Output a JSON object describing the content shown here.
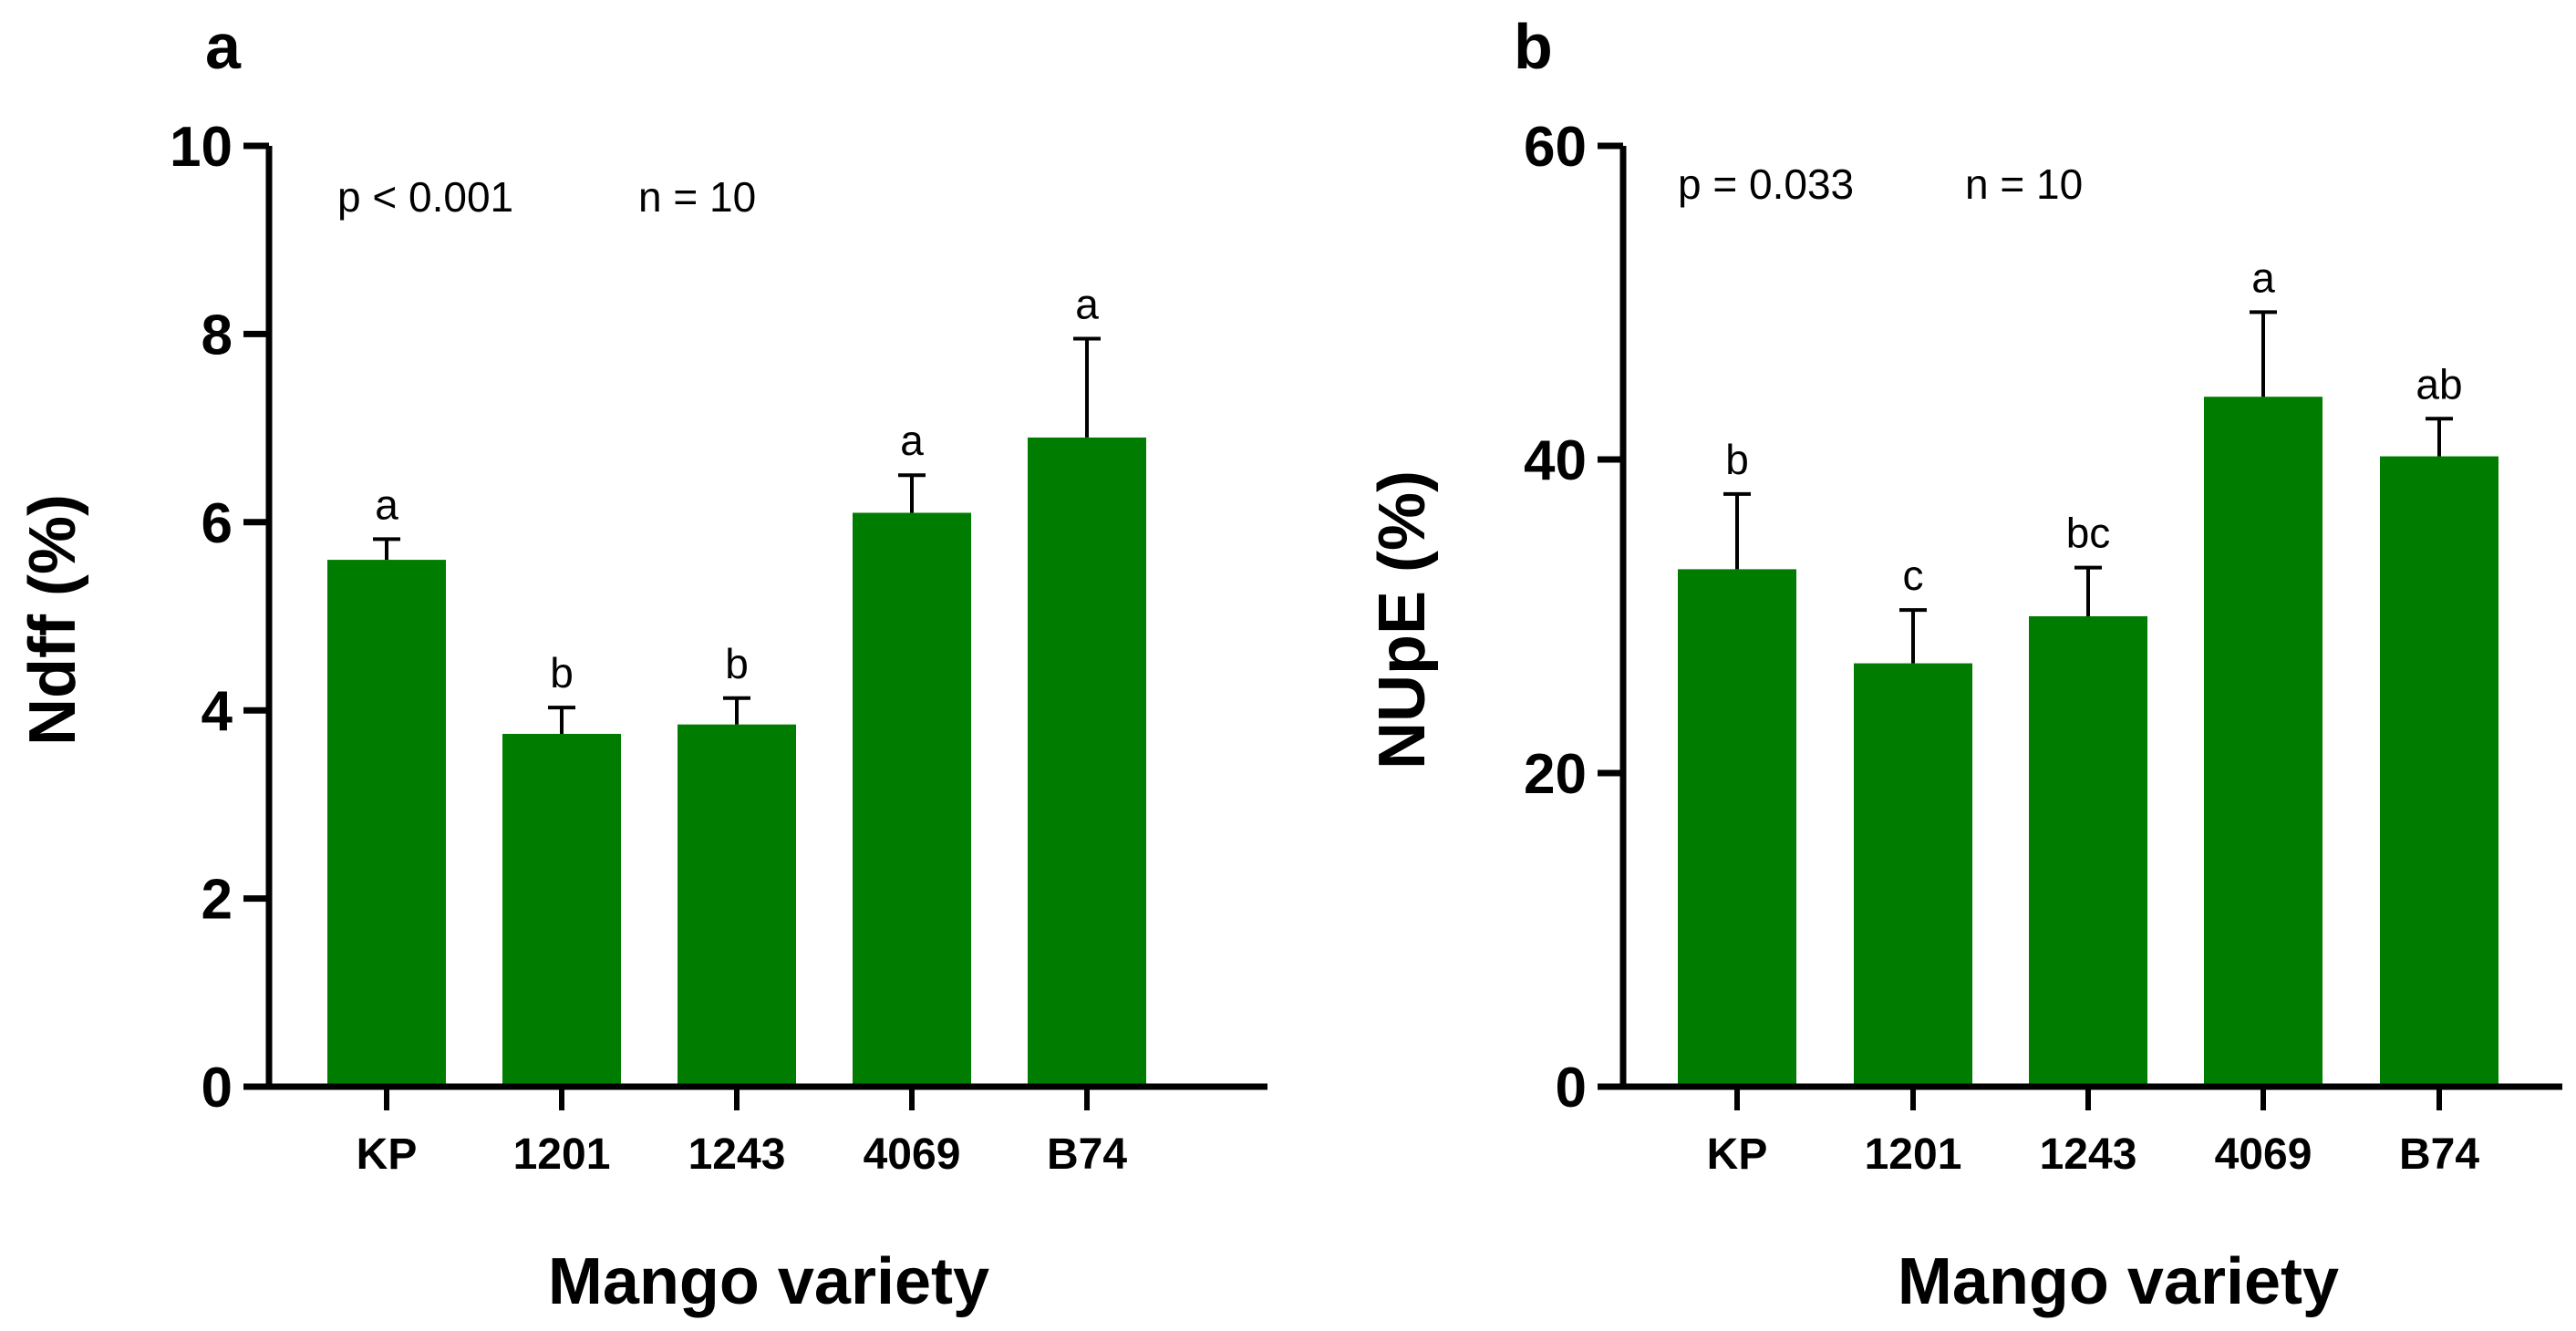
{
  "chart_data": [
    {
      "panel": "a",
      "type": "bar",
      "categories": [
        "KP",
        "1201",
        "1243",
        "4069",
        "B74"
      ],
      "values": [
        5.6,
        3.75,
        3.85,
        6.1,
        6.9
      ],
      "errors": [
        0.22,
        0.28,
        0.28,
        0.4,
        1.05
      ],
      "significance": [
        "a",
        "b",
        "b",
        "a",
        "a"
      ],
      "ylabel": "Ndff (%)",
      "xlabel": "Mango variety",
      "ylim": [
        0,
        10
      ],
      "yticks": [
        0,
        2,
        4,
        6,
        8,
        10
      ],
      "yticklabels": [
        "0",
        "2",
        "4",
        "6",
        "8",
        "10"
      ],
      "annotations": {
        "p": "p < 0.001",
        "n": "n =  10"
      },
      "bar_color": "#007d00"
    },
    {
      "panel": "b",
      "type": "bar",
      "categories": [
        "KP",
        "1201",
        "1243",
        "4069",
        "B74"
      ],
      "values": [
        33,
        27,
        30,
        44,
        40.2
      ],
      "errors": [
        4.8,
        3.4,
        3.1,
        5.4,
        2.4
      ],
      "significance": [
        "b",
        "c",
        "bc",
        "a",
        "ab"
      ],
      "ylabel": "NUpE (%)",
      "xlabel": "Mango variety",
      "ylim": [
        0,
        60
      ],
      "yticks": [
        0,
        20,
        40,
        60
      ],
      "yticklabels": [
        "0",
        "20",
        "40",
        "60"
      ],
      "annotations": {
        "p": "p = 0.033",
        "n": "n = 10"
      },
      "bar_color": "#007d00"
    }
  ]
}
